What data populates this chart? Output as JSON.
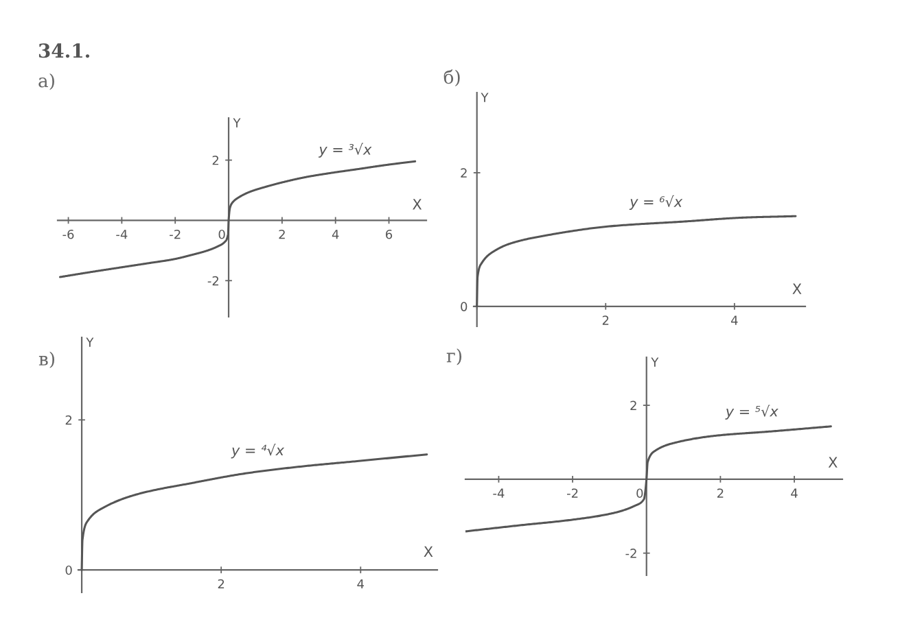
{
  "chart_data": [
    {
      "type": "line",
      "title": "а)",
      "xlabel": "X",
      "ylabel": "Y",
      "xlim": [
        -6.4,
        7.4
      ],
      "ylim": [
        -3.2,
        3.4
      ],
      "xticks": [
        -6,
        -4,
        -2,
        0,
        2,
        4,
        6
      ],
      "yticks": [
        -2,
        2
      ],
      "series": [
        {
          "name": "y = ³√x",
          "color": "#555555",
          "x": [
            -6.31,
            -5.2,
            -4.03,
            -3.0,
            -2.06,
            -1.4,
            -0.79,
            -0.4,
            -0.15,
            -0.02,
            0,
            0.05,
            0.15,
            0.39,
            0.8,
            1.37,
            2.0,
            2.85,
            3.8,
            4.82,
            5.9,
            6.98
          ],
          "values": [
            -1.88,
            -1.72,
            -1.56,
            -1.42,
            -1.29,
            -1.15,
            -1.0,
            -0.86,
            -0.72,
            -0.46,
            0,
            0.42,
            0.6,
            0.77,
            0.95,
            1.11,
            1.26,
            1.43,
            1.57,
            1.7,
            1.84,
            1.96
          ]
        }
      ],
      "annotations": [
        "34.1."
      ]
    },
    {
      "type": "line",
      "title": "б)",
      "xlabel": "X",
      "ylabel": "Y",
      "xlim": [
        -0.05,
        5.1
      ],
      "ylim": [
        -0.3,
        3.2
      ],
      "xticks": [
        {
          "value": 0,
          "label": null
        },
        2,
        4
      ],
      "yticks": [
        0,
        2
      ],
      "series": [
        {
          "name": "y = ⁶√x",
          "color": "#555555",
          "x": [
            0,
            0.01,
            0.076,
            0.29,
            0.55,
            1.12,
            2.08,
            3.22,
            4.17,
            4.95
          ],
          "values": [
            0,
            0.44,
            0.65,
            0.84,
            0.95,
            1.07,
            1.2,
            1.27,
            1.33,
            1.35
          ]
        }
      ]
    },
    {
      "type": "line",
      "title": "в)",
      "xlabel": "X",
      "ylabel": "Y",
      "xlim": [
        -0.05,
        5.1
      ],
      "ylim": [
        -0.3,
        3.1
      ],
      "xticks": [
        {
          "value": 0,
          "label": null
        },
        2,
        4
      ],
      "yticks": [
        0,
        2
      ],
      "series": [
        {
          "name": "y = ⁴√x",
          "color": "#555555",
          "x": [
            0,
            0.01,
            0.09,
            0.33,
            0.8,
            1.59,
            2.37,
            3.16,
            3.95,
            4.95
          ],
          "values": [
            0,
            0.4,
            0.66,
            0.84,
            1.01,
            1.16,
            1.29,
            1.38,
            1.45,
            1.54
          ]
        }
      ]
    },
    {
      "type": "line",
      "title": "г)",
      "xlabel": "X",
      "ylabel": "Y",
      "xlim": [
        -4.9,
        5.3
      ],
      "ylim": [
        -2.6,
        3.3
      ],
      "xticks": [
        -4,
        -2,
        0,
        2,
        4
      ],
      "yticks": [
        -2,
        2
      ],
      "series": [
        {
          "name": "y = ⁵√x",
          "color": "#555555",
          "x": [
            -4.89,
            -3.46,
            -2.04,
            -0.96,
            -0.32,
            -0.07,
            0,
            0.03,
            0.25,
            0.82,
            1.89,
            3.32,
            4.99
          ],
          "values": [
            -1.41,
            -1.25,
            -1.1,
            -0.93,
            -0.72,
            -0.54,
            0,
            0.46,
            0.78,
            1.0,
            1.18,
            1.29,
            1.43
          ]
        }
      ]
    }
  ]
}
